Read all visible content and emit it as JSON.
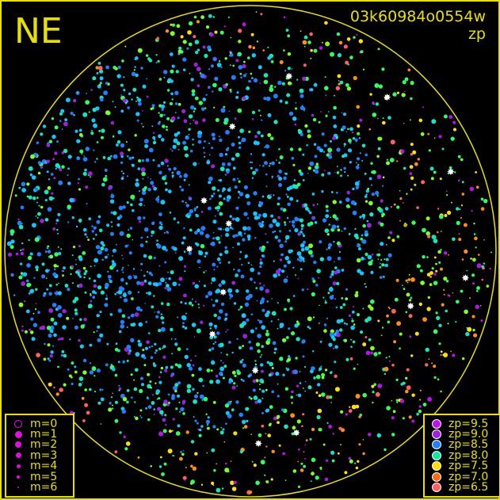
{
  "header": {
    "direction": "NE",
    "image_id": "03k60984o0554w",
    "mode": "zp"
  },
  "colors": {
    "frame": "#e8e000",
    "background": "#000000"
  },
  "magnitude_legend": [
    {
      "label": "m=0",
      "size": 4,
      "hollow": true
    },
    {
      "label": "m=1",
      "size": 4.5
    },
    {
      "label": "m=2",
      "size": 4
    },
    {
      "label": "m=3",
      "size": 3.5
    },
    {
      "label": "m=4",
      "size": 2.5
    },
    {
      "label": "m=5",
      "size": 2
    },
    {
      "label": "m=6",
      "size": 1.3
    }
  ],
  "zp_legend": [
    {
      "label": "zp=9.5",
      "color": "#c010f0"
    },
    {
      "label": "zp=9.0",
      "color": "#a020e0"
    },
    {
      "label": "zp=8.5",
      "color": "#2080ff"
    },
    {
      "label": "zp=8.0",
      "color": "#10e8a0"
    },
    {
      "label": "zp=7.5",
      "color": "#ffe000"
    },
    {
      "label": "zp=7.0",
      "color": "#ff6a10"
    },
    {
      "label": "zp=6.5",
      "color": "#ff6060"
    }
  ],
  "legend_symbol_color": "#e010e0"
}
